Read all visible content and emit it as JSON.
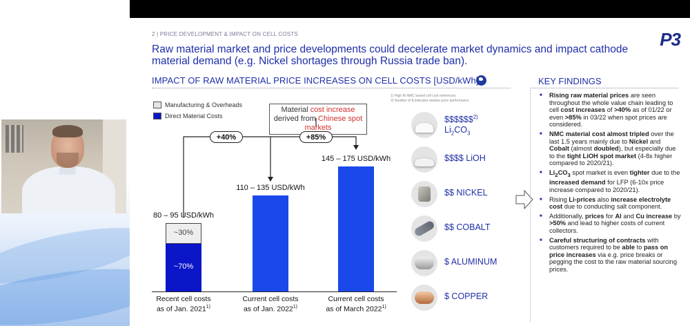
{
  "slide": {
    "section_label": "2 | PRICE DEVELOPMENT & IMPACT ON CELL COSTS",
    "logo": "P3",
    "headline": "Raw material market and price developments could decelerate market dynamics and impact cathode material demand (e.g. Nickel shortages through Russia trade ban).",
    "chart_title": "IMPACT OF RAW MATERIAL PRICE INCREASES ON CELL COSTS [USD/kWh]",
    "footnotes": [
      "1) High Ni NMC based cell cost references",
      "2) Number of $ indicates relative price performance"
    ],
    "legend": [
      {
        "label": "Manufacturing & Overheads",
        "color": "#e4e4e4"
      },
      {
        "label": "Direct Material Costs",
        "color": "#0a16c8"
      }
    ],
    "callout": {
      "part1": "Material ",
      "highlight1": "cost increase",
      "part2": " derived from ",
      "highlight2": "Chinese spot markets"
    },
    "increase_badges": [
      "+40%",
      "+85%"
    ],
    "materials": [
      {
        "label": "$$$$$$",
        "sup": "2)",
        "sub": "Li2CO3",
        "icon": "lithium-carbonate-icon"
      },
      {
        "label": "$$$$ LiOH",
        "icon": "lithium-hydroxide-icon"
      },
      {
        "label": "$$ NICKEL",
        "icon": "nickel-icon"
      },
      {
        "label": "$$ COBALT",
        "icon": "cobalt-icon"
      },
      {
        "label": "$ ALUMINUM",
        "icon": "aluminum-icon"
      },
      {
        "label": "$ COPPER",
        "icon": "copper-icon"
      }
    ],
    "key_findings_title": "KEY FINDINGS"
  },
  "chart_data": {
    "type": "bar",
    "categories": [
      "Recent cell costs as of Jan. 2021",
      "Current cell costs as of Jan. 2022",
      "Current cell costs as of March 2022"
    ],
    "category_lines": [
      [
        "Recent cell costs",
        "as of Jan. 2021",
        "1)"
      ],
      [
        "Current cell costs",
        "as of Jan. 2022",
        "1)"
      ],
      [
        "Current cell costs",
        "as of March 2022",
        "1)"
      ]
    ],
    "value_labels": [
      "80 – 95 USD/kWh",
      "110 – 135 USD/kWh",
      "145 – 175 USD/kWh"
    ],
    "values": [
      87.5,
      122.5,
      160
    ],
    "stack_shares": {
      "manufacturing_pct": "~30%",
      "material_pct": "~70%"
    },
    "ylim": [
      0,
      180
    ],
    "grid": false,
    "legend_placement": "top-left"
  },
  "colors": {
    "accent": "#1f2fa8",
    "bar_blue": "#1a48ea",
    "bar_dark": "#0a16c8",
    "highlight_red": "#d0312d"
  }
}
